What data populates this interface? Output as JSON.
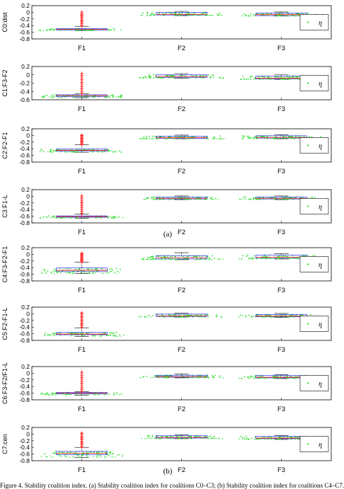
{
  "figure": {
    "label_a": "(a)",
    "label_b": "(b)",
    "caption": "Figure 4. Stability coalition index. (a) Stability coalition index for coalitions C0–C3; (b) Stability coalition index for coalitions C4–C7."
  },
  "chart_data": [
    {
      "type": "box",
      "ylabel": "C0:dist",
      "ylim": [
        -0.8,
        0.2
      ],
      "yticks": [
        "0.2",
        "0",
        "-0.2",
        "-0.4",
        "-0.6",
        "-0.8"
      ],
      "categories": [
        "F1",
        "F2",
        "F3"
      ],
      "series": [
        {
          "values": [
            {
              "q1": -0.53,
              "median": -0.51,
              "q3": -0.49,
              "whisker_low": -0.55,
              "whisker_high": -0.42,
              "outlier_max": 0.02
            },
            {
              "q1": -0.08,
              "median": -0.06,
              "q3": 0.0,
              "whisker_low": -0.1,
              "whisker_high": 0.03
            },
            {
              "q1": -0.1,
              "median": -0.07,
              "q3": -0.02,
              "whisker_low": -0.11,
              "whisker_high": 0.01
            }
          ]
        }
      ],
      "legend": {
        "label": "η",
        "position": "right"
      }
    },
    {
      "type": "box",
      "ylabel": "C1:F3-F2",
      "ylim": [
        -0.6,
        0.2
      ],
      "yticks": [
        "0.2",
        "0",
        "-0.2",
        "-0.4",
        "-0.6"
      ],
      "categories": [
        "F1",
        "F2",
        "F3"
      ],
      "series": [
        {
          "values": [
            {
              "q1": -0.52,
              "median": -0.5,
              "q3": -0.48,
              "whisker_low": -0.55,
              "whisker_high": -0.45,
              "outlier_max": 0.05
            },
            {
              "q1": -0.06,
              "median": -0.04,
              "q3": 0.0,
              "whisker_low": -0.08,
              "whisker_high": 0.03
            },
            {
              "q1": -0.1,
              "median": -0.08,
              "q3": -0.03,
              "whisker_low": -0.11,
              "whisker_high": 0.0
            }
          ]
        }
      ],
      "legend": {
        "label": "η",
        "position": "right"
      }
    },
    {
      "type": "box",
      "ylabel": "C2:F2-F1",
      "ylim": [
        -0.8,
        0.2
      ],
      "yticks": [
        "0.2",
        "0",
        "-0.2",
        "-0.4",
        "-0.6",
        "-0.8"
      ],
      "categories": [
        "F1",
        "F2",
        "F3"
      ],
      "series": [
        {
          "values": [
            {
              "q1": -0.47,
              "median": -0.45,
              "q3": -0.41,
              "whisker_low": -0.51,
              "whisker_high": -0.28,
              "outlier_max": 0.03
            },
            {
              "q1": -0.09,
              "median": -0.07,
              "q3": -0.02,
              "whisker_low": -0.1,
              "whisker_high": 0.01
            },
            {
              "q1": -0.08,
              "median": -0.06,
              "q3": -0.01,
              "whisker_low": -0.1,
              "whisker_high": 0.02
            }
          ]
        }
      ],
      "legend": {
        "label": "η",
        "position": "right"
      }
    },
    {
      "type": "box",
      "ylabel": "C3:F1-L",
      "ylim": [
        -0.8,
        0.2
      ],
      "yticks": [
        "0.2",
        "0",
        "-0.2",
        "-0.4",
        "-0.6",
        "-0.8"
      ],
      "categories": [
        "F1",
        "F2",
        "F3"
      ],
      "series": [
        {
          "values": [
            {
              "q1": -0.63,
              "median": -0.61,
              "q3": -0.59,
              "whisker_low": -0.66,
              "whisker_high": -0.53,
              "outlier_max": 0.03
            },
            {
              "q1": -0.08,
              "median": -0.06,
              "q3": -0.02,
              "whisker_low": -0.1,
              "whisker_high": 0.01
            },
            {
              "q1": -0.08,
              "median": -0.06,
              "q3": -0.02,
              "whisker_low": -0.1,
              "whisker_high": 0.01
            }
          ]
        }
      ],
      "legend": {
        "label": "η",
        "position": "right"
      }
    },
    {
      "type": "box",
      "ylabel": "C4:F3-F2-F1",
      "ylim": [
        -0.8,
        0.2
      ],
      "yticks": [
        "0.2",
        "0",
        "-0.2",
        "-0.4",
        "-0.6",
        "-0.8"
      ],
      "categories": [
        "F1",
        "F2",
        "F3"
      ],
      "series": [
        {
          "values": [
            {
              "q1": -0.52,
              "median": -0.48,
              "q3": -0.41,
              "whisker_low": -0.58,
              "whisker_high": -0.24,
              "outlier_max": 0.05
            },
            {
              "q1": -0.14,
              "median": -0.1,
              "q3": -0.04,
              "whisker_low": -0.16,
              "whisker_high": 0.05
            },
            {
              "q1": -0.12,
              "median": -0.09,
              "q3": -0.02,
              "whisker_low": -0.14,
              "whisker_high": 0.02
            }
          ]
        }
      ],
      "legend": {
        "label": "η",
        "position": "right"
      }
    },
    {
      "type": "box",
      "ylabel": "C5:F2-F1-L",
      "ylim": [
        -0.8,
        0.2
      ],
      "yticks": [
        "0.2",
        "0",
        "-0.2",
        "-0.4",
        "-0.6",
        "-0.8"
      ],
      "categories": [
        "F1",
        "F2",
        "F3"
      ],
      "series": [
        {
          "values": [
            {
              "q1": -0.63,
              "median": -0.61,
              "q3": -0.56,
              "whisker_low": -0.68,
              "whisker_high": -0.42,
              "outlier_max": 0.05
            },
            {
              "q1": -0.08,
              "median": -0.06,
              "q3": -0.01,
              "whisker_low": -0.1,
              "whisker_high": 0.02
            },
            {
              "q1": -0.09,
              "median": -0.07,
              "q3": -0.02,
              "whisker_low": -0.11,
              "whisker_high": 0.01
            }
          ]
        }
      ],
      "legend": {
        "label": "η",
        "position": "right"
      }
    },
    {
      "type": "box",
      "ylabel": "C6:F3-F2/F1-L",
      "ylim": [
        -0.8,
        0.2
      ],
      "yticks": [
        "0.2",
        "0",
        "-0.2",
        "-0.4",
        "-0.6",
        "-0.8"
      ],
      "categories": [
        "F1",
        "F2",
        "F3"
      ],
      "series": [
        {
          "values": [
            {
              "q1": -0.62,
              "median": -0.6,
              "q3": -0.58,
              "whisker_low": -0.66,
              "whisker_high": -0.56,
              "outlier_max": 0.05
            },
            {
              "q1": -0.12,
              "median": -0.1,
              "q3": -0.06,
              "whisker_low": -0.14,
              "whisker_high": -0.02
            },
            {
              "q1": -0.14,
              "median": -0.12,
              "q3": -0.07,
              "whisker_low": -0.16,
              "whisker_high": -0.04
            }
          ]
        }
      ],
      "legend": {
        "label": "η",
        "position": "right"
      }
    },
    {
      "type": "box",
      "ylabel": "C7:cen",
      "ylim": [
        -0.8,
        0.2
      ],
      "yticks": [
        "0.2",
        "0",
        "-0.2",
        "-0.4",
        "-0.6",
        "-0.8"
      ],
      "categories": [
        "F1",
        "F2",
        "F3"
      ],
      "series": [
        {
          "values": [
            {
              "q1": -0.62,
              "median": -0.58,
              "q3": -0.52,
              "whisker_low": -0.7,
              "whisker_high": -0.4,
              "outlier_max": 0.05
            },
            {
              "q1": -0.12,
              "median": -0.1,
              "q3": -0.05,
              "whisker_low": -0.14,
              "whisker_high": -0.02
            },
            {
              "q1": -0.14,
              "median": -0.12,
              "q3": -0.07,
              "whisker_low": -0.16,
              "whisker_high": -0.04
            }
          ]
        }
      ],
      "legend": {
        "label": "η",
        "position": "right"
      }
    }
  ]
}
